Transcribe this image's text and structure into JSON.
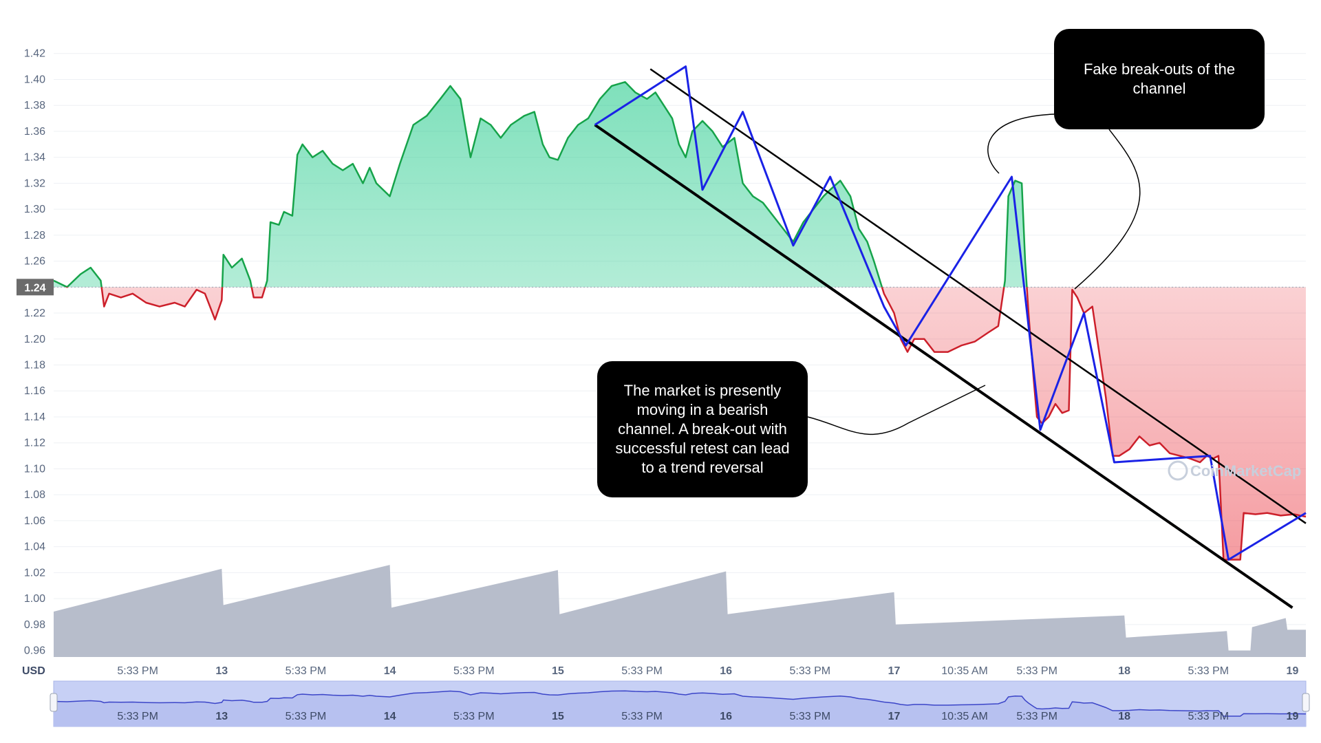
{
  "chart_data": {
    "type": "line",
    "currency_label": "USD",
    "reference_price": 1.24,
    "reference_label": "1.24",
    "y_ticks": [
      1.42,
      1.4,
      1.38,
      1.36,
      1.34,
      1.32,
      1.3,
      1.28,
      1.26,
      1.24,
      1.22,
      1.2,
      1.18,
      1.16,
      1.14,
      1.12,
      1.1,
      1.08,
      1.06,
      1.04,
      1.02,
      1.0,
      0.98,
      0.96
    ],
    "y_tick_labels": [
      "1.42",
      "1.40",
      "1.38",
      "1.36",
      "1.34",
      "1.32",
      "1.30",
      "1.28",
      "1.26",
      "1.24",
      "1.22",
      "1.20",
      "1.18",
      "1.16",
      "1.14",
      "1.12",
      "1.10",
      "1.08",
      "1.06",
      "1.04",
      "1.02",
      "1.00",
      "0.98",
      "0.96"
    ],
    "ylim": [
      0.955,
      1.44
    ],
    "x_ticks": [
      {
        "t": 0.5,
        "label": "5:33 PM",
        "bold": false
      },
      {
        "t": 1.0,
        "label": "13",
        "bold": true
      },
      {
        "t": 1.5,
        "label": "5:33 PM",
        "bold": false
      },
      {
        "t": 2.0,
        "label": "14",
        "bold": true
      },
      {
        "t": 2.5,
        "label": "5:33 PM",
        "bold": false
      },
      {
        "t": 3.0,
        "label": "15",
        "bold": true
      },
      {
        "t": 3.5,
        "label": "5:33 PM",
        "bold": false
      },
      {
        "t": 4.0,
        "label": "16",
        "bold": true
      },
      {
        "t": 4.5,
        "label": "5:33 PM",
        "bold": false
      },
      {
        "t": 5.0,
        "label": "17",
        "bold": true
      },
      {
        "t": 5.42,
        "label": "10:35 AM",
        "bold": false
      },
      {
        "t": 5.85,
        "label": "5:33 PM",
        "bold": false
      },
      {
        "t": 6.37,
        "label": "18",
        "bold": true
      },
      {
        "t": 6.87,
        "label": "5:33 PM",
        "bold": false
      },
      {
        "t": 7.37,
        "label": "19",
        "bold": true
      }
    ],
    "xlim": [
      0,
      7.45
    ],
    "price_series": [
      [
        0.0,
        1.245
      ],
      [
        0.08,
        1.24
      ],
      [
        0.16,
        1.25
      ],
      [
        0.22,
        1.255
      ],
      [
        0.28,
        1.245
      ],
      [
        0.3,
        1.225
      ],
      [
        0.33,
        1.235
      ],
      [
        0.4,
        1.232
      ],
      [
        0.47,
        1.235
      ],
      [
        0.55,
        1.228
      ],
      [
        0.63,
        1.225
      ],
      [
        0.72,
        1.228
      ],
      [
        0.78,
        1.225
      ],
      [
        0.85,
        1.238
      ],
      [
        0.9,
        1.235
      ],
      [
        0.93,
        1.225
      ],
      [
        0.96,
        1.215
      ],
      [
        1.0,
        1.23
      ],
      [
        1.01,
        1.265
      ],
      [
        1.06,
        1.255
      ],
      [
        1.12,
        1.262
      ],
      [
        1.17,
        1.245
      ],
      [
        1.19,
        1.232
      ],
      [
        1.24,
        1.232
      ],
      [
        1.27,
        1.245
      ],
      [
        1.29,
        1.29
      ],
      [
        1.34,
        1.288
      ],
      [
        1.37,
        1.298
      ],
      [
        1.42,
        1.295
      ],
      [
        1.45,
        1.342
      ],
      [
        1.48,
        1.35
      ],
      [
        1.54,
        1.34
      ],
      [
        1.6,
        1.345
      ],
      [
        1.66,
        1.335
      ],
      [
        1.72,
        1.33
      ],
      [
        1.78,
        1.335
      ],
      [
        1.84,
        1.32
      ],
      [
        1.88,
        1.332
      ],
      [
        1.92,
        1.32
      ],
      [
        2.0,
        1.31
      ],
      [
        2.06,
        1.335
      ],
      [
        2.14,
        1.365
      ],
      [
        2.22,
        1.372
      ],
      [
        2.3,
        1.385
      ],
      [
        2.36,
        1.395
      ],
      [
        2.42,
        1.385
      ],
      [
        2.48,
        1.34
      ],
      [
        2.54,
        1.37
      ],
      [
        2.6,
        1.365
      ],
      [
        2.66,
        1.355
      ],
      [
        2.72,
        1.365
      ],
      [
        2.8,
        1.372
      ],
      [
        2.86,
        1.375
      ],
      [
        2.91,
        1.35
      ],
      [
        2.95,
        1.34
      ],
      [
        3.0,
        1.338
      ],
      [
        3.06,
        1.355
      ],
      [
        3.12,
        1.365
      ],
      [
        3.18,
        1.37
      ],
      [
        3.25,
        1.385
      ],
      [
        3.32,
        1.395
      ],
      [
        3.4,
        1.398
      ],
      [
        3.46,
        1.39
      ],
      [
        3.53,
        1.385
      ],
      [
        3.58,
        1.39
      ],
      [
        3.63,
        1.38
      ],
      [
        3.68,
        1.37
      ],
      [
        3.72,
        1.35
      ],
      [
        3.76,
        1.34
      ],
      [
        3.8,
        1.36
      ],
      [
        3.86,
        1.368
      ],
      [
        3.92,
        1.36
      ],
      [
        3.98,
        1.348
      ],
      [
        4.05,
        1.355
      ],
      [
        4.1,
        1.32
      ],
      [
        4.16,
        1.31
      ],
      [
        4.22,
        1.305
      ],
      [
        4.28,
        1.295
      ],
      [
        4.34,
        1.285
      ],
      [
        4.4,
        1.275
      ],
      [
        4.46,
        1.29
      ],
      [
        4.52,
        1.3
      ],
      [
        4.58,
        1.31
      ],
      [
        4.62,
        1.315
      ],
      [
        4.68,
        1.322
      ],
      [
        4.74,
        1.31
      ],
      [
        4.79,
        1.285
      ],
      [
        4.84,
        1.275
      ],
      [
        4.88,
        1.26
      ],
      [
        4.94,
        1.235
      ],
      [
        5.0,
        1.22
      ],
      [
        5.04,
        1.2
      ],
      [
        5.08,
        1.19
      ],
      [
        5.12,
        1.2
      ],
      [
        5.18,
        1.2
      ],
      [
        5.24,
        1.19
      ],
      [
        5.32,
        1.19
      ],
      [
        5.4,
        1.195
      ],
      [
        5.48,
        1.198
      ],
      [
        5.56,
        1.205
      ],
      [
        5.62,
        1.21
      ],
      [
        5.66,
        1.245
      ],
      [
        5.68,
        1.31
      ],
      [
        5.72,
        1.322
      ],
      [
        5.76,
        1.32
      ],
      [
        5.78,
        1.26
      ],
      [
        5.8,
        1.22
      ],
      [
        5.83,
        1.17
      ],
      [
        5.85,
        1.14
      ],
      [
        5.88,
        1.135
      ],
      [
        5.92,
        1.14
      ],
      [
        5.96,
        1.15
      ],
      [
        6.0,
        1.143
      ],
      [
        6.04,
        1.145
      ],
      [
        6.06,
        1.238
      ],
      [
        6.09,
        1.232
      ],
      [
        6.13,
        1.22
      ],
      [
        6.18,
        1.225
      ],
      [
        6.22,
        1.19
      ],
      [
        6.26,
        1.155
      ],
      [
        6.3,
        1.11
      ],
      [
        6.34,
        1.11
      ],
      [
        6.4,
        1.115
      ],
      [
        6.46,
        1.125
      ],
      [
        6.52,
        1.118
      ],
      [
        6.58,
        1.12
      ],
      [
        6.64,
        1.112
      ],
      [
        6.7,
        1.11
      ],
      [
        6.76,
        1.108
      ],
      [
        6.82,
        1.105
      ],
      [
        6.86,
        1.11
      ],
      [
        6.9,
        1.108
      ],
      [
        6.93,
        1.11
      ],
      [
        6.96,
        1.03
      ],
      [
        7.01,
        1.03
      ],
      [
        7.06,
        1.03
      ],
      [
        7.08,
        1.066
      ],
      [
        7.15,
        1.065
      ],
      [
        7.22,
        1.066
      ],
      [
        7.3,
        1.064
      ],
      [
        7.38,
        1.065
      ],
      [
        7.45,
        1.063
      ]
    ],
    "volume_series": [
      [
        0.0,
        0.99
      ],
      [
        1.0,
        1.023
      ],
      [
        1.01,
        0.995
      ],
      [
        2.0,
        1.026
      ],
      [
        2.01,
        0.993
      ],
      [
        3.0,
        1.022
      ],
      [
        3.01,
        0.988
      ],
      [
        4.0,
        1.021
      ],
      [
        4.01,
        0.988
      ],
      [
        5.0,
        1.005
      ],
      [
        5.01,
        0.98
      ],
      [
        6.37,
        0.987
      ],
      [
        6.38,
        0.97
      ],
      [
        6.98,
        0.975
      ],
      [
        6.99,
        0.96
      ],
      [
        7.12,
        0.96
      ],
      [
        7.13,
        0.978
      ],
      [
        7.33,
        0.985
      ],
      [
        7.34,
        0.976
      ],
      [
        7.45,
        0.976
      ]
    ],
    "channel_lines": [
      {
        "name": "",
        "x": [
          3.55,
          7.45
        ],
        "y": [
          1.408,
          1.058
        ]
      },
      {
        "name": "",
        "x": [
          3.22,
          7.37
        ],
        "y": [
          1.365,
          0.993
        ]
      }
    ],
    "zigzag_series": [
      [
        3.22,
        1.365
      ],
      [
        3.76,
        1.41
      ],
      [
        3.86,
        1.315
      ],
      [
        4.1,
        1.375
      ],
      [
        4.4,
        1.272
      ],
      [
        4.62,
        1.325
      ],
      [
        4.94,
        1.225
      ],
      [
        5.07,
        1.195
      ],
      [
        5.7,
        1.325
      ],
      [
        5.87,
        1.13
      ],
      [
        6.13,
        1.22
      ],
      [
        6.31,
        1.105
      ],
      [
        6.88,
        1.11
      ],
      [
        6.99,
        1.03
      ],
      [
        7.45,
        1.066
      ]
    ],
    "annotations": [
      {
        "text": "Fake break-outs of the channel"
      },
      {
        "text": "The market is presently moving in a bearish channel. A break-out with successful retest can lead to a trend reversal"
      }
    ],
    "watermark": "CoinMarketCap",
    "colors": {
      "up": "#16a34a",
      "down": "#cc1f2a",
      "volume": "#b7bdcb",
      "zigzag": "#1a22e6",
      "channel": "#000000",
      "navigator": "#c7d0f5",
      "navigator_line": "#3b45c8"
    }
  }
}
